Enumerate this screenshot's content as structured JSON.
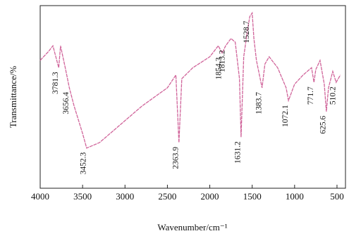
{
  "chart_data": {
    "type": "line",
    "x_label": "Wavenumber/cm⁻¹",
    "y_label": "Transmittance/%",
    "x": [
      4000,
      3900,
      3850,
      3781.3,
      3760,
      3700,
      3656.4,
      3600,
      3500,
      3452.3,
      3300,
      3000,
      2800,
      2500,
      2400,
      2363.9,
      2330,
      2200,
      2000,
      1900,
      1854.3,
      1813.2,
      1750,
      1700,
      1650,
      1631.2,
      1600,
      1560,
      1528.7,
      1500,
      1480,
      1450,
      1383.7,
      1350,
      1300,
      1200,
      1100,
      1072.1,
      1000,
      900,
      800,
      771.7,
      750,
      700,
      650,
      625.6,
      600,
      550,
      510.2,
      460
    ],
    "values": [
      70,
      75,
      78,
      66,
      78,
      65,
      55,
      45,
      30,
      22,
      25,
      37,
      45,
      55,
      62,
      25,
      60,
      66,
      72,
      78,
      74,
      78,
      82,
      80,
      60,
      28,
      72,
      85,
      94,
      96,
      82,
      70,
      55,
      68,
      72,
      66,
      55,
      48,
      57,
      62,
      66,
      58,
      65,
      70,
      57,
      42,
      55,
      64,
      58,
      62
    ],
    "color": "#d0649a",
    "peaks": [
      3781.3,
      3656.4,
      3452.3,
      2363.9,
      1854.3,
      1813.2,
      1631.2,
      1528.7,
      1383.7,
      1072.1,
      771.7,
      625.6,
      510.2
    ],
    "xlim": [
      4000,
      400
    ],
    "ylim": [
      0,
      100
    ],
    "xticks": [
      4000,
      3500,
      3000,
      2500,
      2000,
      1500,
      1000,
      500
    ]
  }
}
